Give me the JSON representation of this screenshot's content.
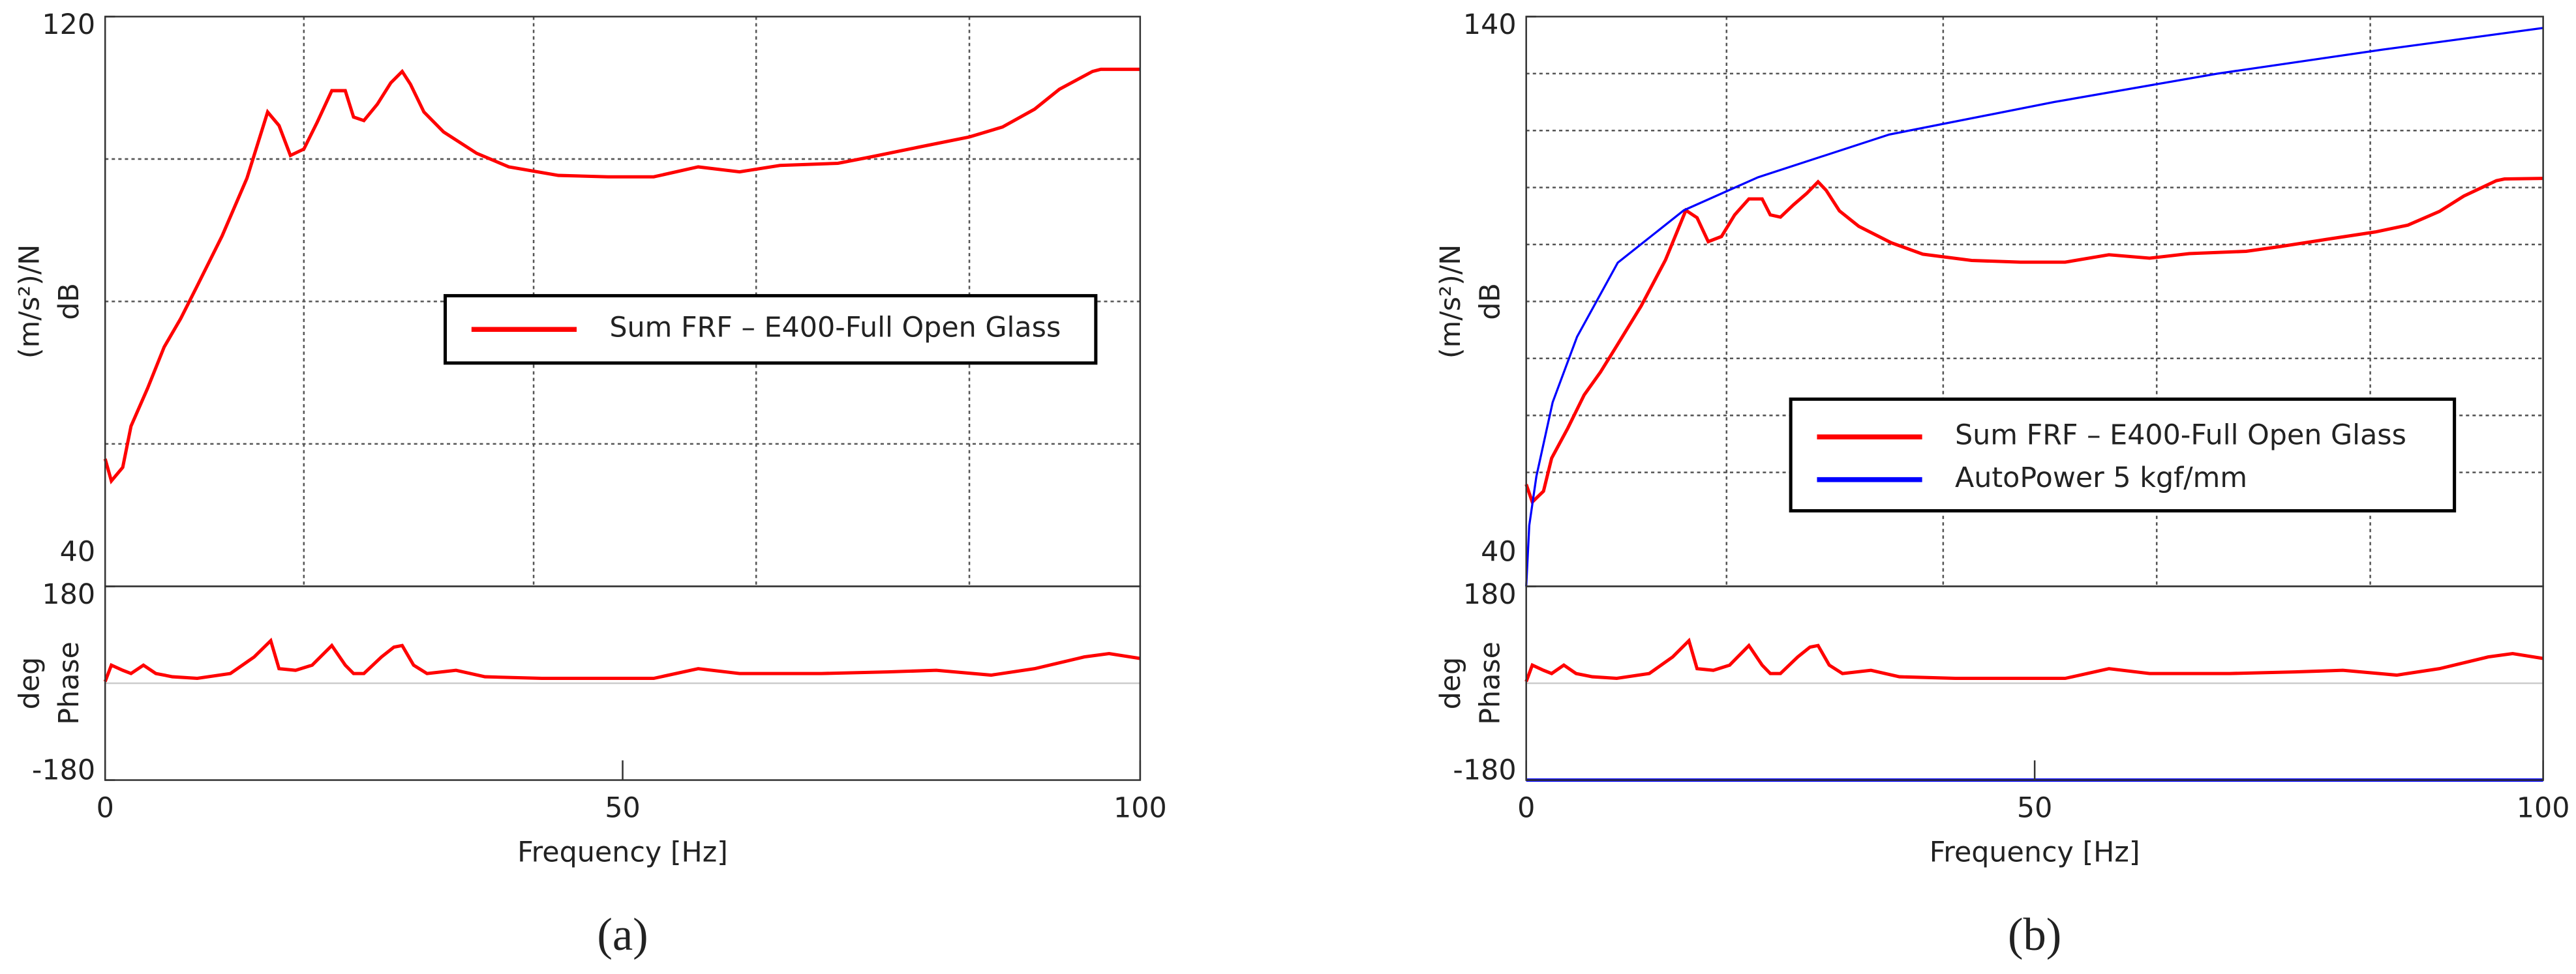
{
  "chart_data": [
    {
      "type": "line",
      "xlim": [
        0,
        100
      ],
      "ylim": [
        40,
        120
      ],
      "yticks": [
        40,
        120
      ],
      "y_label": [
        "(m/s²)/N",
        "dB"
      ],
      "ygrid": [
        60,
        80,
        100
      ],
      "xgrid": [
        19.2,
        41.4,
        62.9,
        83.5
      ],
      "legend": "center",
      "series": [
        {
          "name": "Sum FRF – E400-Full Open Glass",
          "color": "#ff0000",
          "x": [
            0,
            0.6,
            1.7,
            2.5,
            4.1,
            5.7,
            7.3,
            8.9,
            11.3,
            13.7,
            15.7,
            16.8,
            17.9,
            19.2,
            20.5,
            21.9,
            23.2,
            24,
            25,
            26.3,
            27.6,
            28.7,
            29.5,
            30.8,
            32.7,
            35.9,
            39,
            43.8,
            48.6,
            53,
            57.3,
            61.3,
            65.2,
            70.8,
            74,
            78.7,
            83.5,
            86.7,
            89.8,
            92.2,
            95.4,
            96.2,
            100
          ],
          "values": [
            57.9,
            54.8,
            56.7,
            62.5,
            67.8,
            73.6,
            77.6,
            82.2,
            89.2,
            97.3,
            106.6,
            104.7,
            100.5,
            101.4,
            105.2,
            109.6,
            109.6,
            105.9,
            105.4,
            107.7,
            110.7,
            112.3,
            110.5,
            106.6,
            103.8,
            100.8,
            98.9,
            97.7,
            97.5,
            97.5,
            98.9,
            98.2,
            99.1,
            99.4,
            100.3,
            101.7,
            103.1,
            104.5,
            107,
            109.8,
            112.3,
            112.6,
            112.6
          ]
        }
      ]
    },
    {
      "type": "line",
      "xlim": [
        0,
        100
      ],
      "xticks": [
        0,
        50,
        100
      ],
      "x_label": "Frequency [Hz]",
      "caption": "(a)",
      "ylim": [
        -180,
        180
      ],
      "yticks": [
        -180,
        180
      ],
      "y_label": [
        "deg",
        "Phase"
      ],
      "ygrid": [
        0
      ],
      "series": [
        {
          "color": "#ff0000",
          "x": [
            0,
            0.6,
            1.7,
            2.5,
            3.7,
            4.9,
            6.5,
            8.9,
            12.1,
            14.4,
            16,
            16.8,
            18.4,
            20,
            21.9,
            23.2,
            24,
            25,
            26.7,
            27.9,
            28.7,
            29.8,
            31.1,
            33.9,
            36.7,
            42.2,
            53,
            57.3,
            61.3,
            69.2,
            75.6,
            80.3,
            85.6,
            89.8,
            94.6,
            97,
            100
          ],
          "values": [
            3,
            33.6,
            24,
            18,
            33.6,
            18,
            12,
            9,
            18,
            48.8,
            79,
            27,
            24,
            33.6,
            70,
            33.6,
            18,
            18,
            48.8,
            67,
            70,
            33.6,
            18,
            24,
            12,
            9,
            9,
            27,
            18,
            18,
            21,
            24,
            15,
            27,
            48.8,
            55,
            46
          ]
        }
      ]
    },
    {
      "type": "line",
      "xlim": [
        0,
        100
      ],
      "ylim": [
        40,
        140
      ],
      "yticks": [
        40,
        140
      ],
      "y_label": [
        "(m/s²)/N",
        "dB"
      ],
      "ygrid": [
        60,
        70,
        80,
        90,
        100,
        110,
        120,
        130
      ],
      "xgrid": [
        19.7,
        41,
        62,
        83
      ],
      "legend": "lower right",
      "series": [
        {
          "name": "Sum FRF – E400-Full Open Glass",
          "color": "#ff0000",
          "x": [
            0,
            0.6,
            1.7,
            2.5,
            4.1,
            5.7,
            7.3,
            8.9,
            11.3,
            13.7,
            15.7,
            16.8,
            17.9,
            19.2,
            20.5,
            21.9,
            23.2,
            24,
            25,
            26.3,
            27.6,
            28.7,
            29.5,
            30.8,
            32.7,
            35.9,
            39,
            43.8,
            48.6,
            53,
            57.3,
            61.3,
            65.2,
            70.8,
            74,
            78.7,
            83.5,
            86.7,
            89.8,
            92.2,
            95.4,
            96.2,
            100
          ],
          "values": [
            57.9,
            54.8,
            56.7,
            62.5,
            67.8,
            73.6,
            77.6,
            82.2,
            89.2,
            97.3,
            106,
            104.7,
            100.5,
            101.4,
            105.2,
            108,
            108,
            105.2,
            104.8,
            107,
            109,
            111,
            109.5,
            105.9,
            103.2,
            100.3,
            98.3,
            97.2,
            96.9,
            96.9,
            98.2,
            97.6,
            98.4,
            98.8,
            99.6,
            100.9,
            102.2,
            103.4,
            105.8,
            108.5,
            111.2,
            111.5,
            111.6
          ]
        },
        {
          "name": "AutoPower 5 kgf/mm",
          "color": "#0000ff",
          "x": [
            0,
            0.3,
            1,
            2.6,
            5,
            9,
            15.5,
            22.8,
            35.7,
            51.9,
            68,
            84.2,
            100
          ],
          "values": [
            40,
            50.7,
            59.3,
            72.3,
            83.8,
            96.8,
            106,
            111.8,
            119.3,
            125,
            130,
            134.2,
            138
          ]
        }
      ]
    },
    {
      "type": "line",
      "xlim": [
        0,
        100
      ],
      "xticks": [
        0,
        50,
        100
      ],
      "x_label": "Frequency [Hz]",
      "caption": "(b)",
      "ylim": [
        -180,
        180
      ],
      "yticks": [
        -180,
        180
      ],
      "y_label": [
        "deg",
        "Phase"
      ],
      "ygrid": [
        0
      ],
      "series": [
        {
          "color": "#ff0000",
          "x": [
            0,
            0.6,
            1.7,
            2.5,
            3.7,
            4.9,
            6.5,
            8.9,
            12.1,
            14.4,
            16,
            16.8,
            18.4,
            20,
            21.9,
            23.2,
            24,
            25,
            26.7,
            27.9,
            28.7,
            29.8,
            31.1,
            33.9,
            36.7,
            42.2,
            53,
            57.3,
            61.3,
            69.2,
            75.6,
            80.3,
            85.6,
            89.8,
            94.6,
            97,
            100
          ],
          "values": [
            3,
            33.6,
            24,
            18,
            33.6,
            18,
            12,
            9,
            18,
            48.8,
            79,
            27,
            24,
            33.6,
            70,
            33.6,
            18,
            18,
            48.8,
            67,
            70,
            33.6,
            18,
            24,
            12,
            9,
            9,
            27,
            18,
            18,
            21,
            24,
            15,
            27,
            48.8,
            55,
            46
          ]
        },
        {
          "color": "#0000ff",
          "x": [
            0,
            100
          ],
          "values": [
            -180,
            -180
          ]
        }
      ]
    }
  ]
}
